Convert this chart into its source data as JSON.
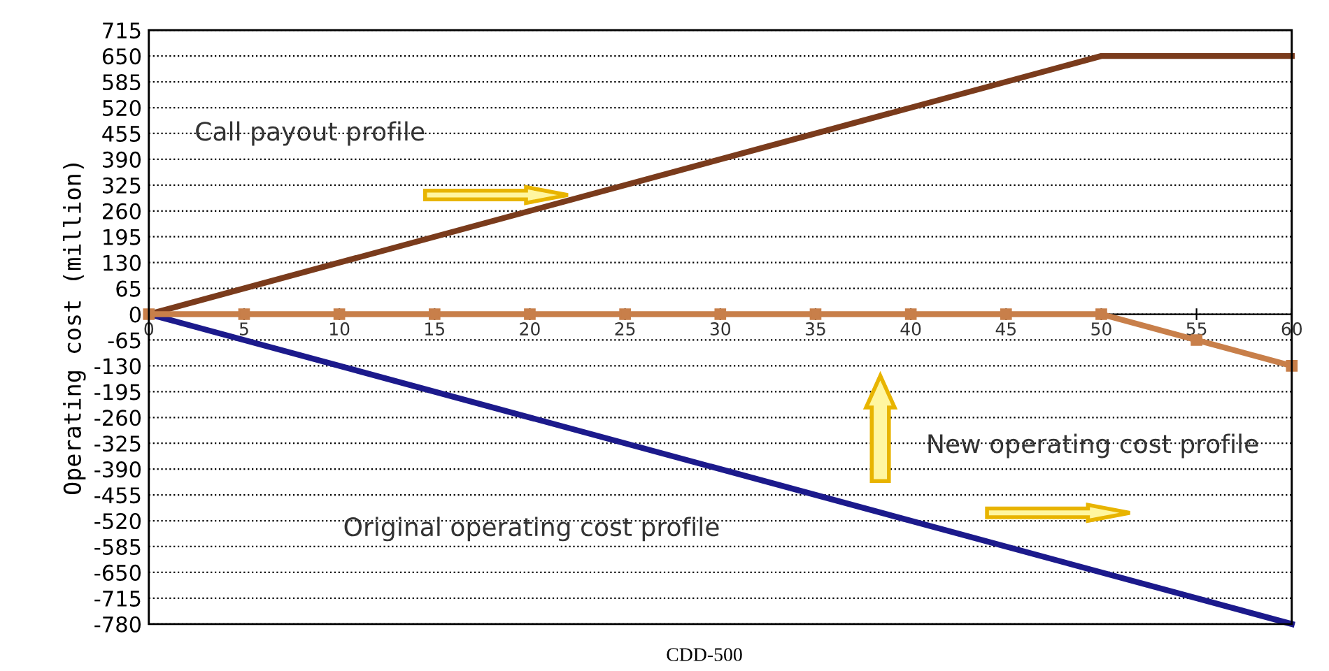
{
  "chart_data": {
    "type": "line",
    "xlabel": "CDD-500",
    "ylabel": "Operating cost (million)",
    "xlim": [
      0,
      60
    ],
    "xticks": [
      0,
      5,
      10,
      15,
      20,
      25,
      30,
      35,
      40,
      45,
      50,
      55,
      60
    ],
    "ylim": [
      -780,
      715
    ],
    "yticks": [
      -780,
      -715,
      -650,
      -585,
      -520,
      -455,
      -390,
      -325,
      -260,
      -195,
      -130,
      -65,
      0,
      65,
      130,
      195,
      260,
      325,
      390,
      455,
      520,
      585,
      650,
      715
    ],
    "grid": "y",
    "legend": false,
    "line_style": "solid",
    "series": [
      {
        "color": "#7a3b1c",
        "x": [
          0,
          50,
          60
        ],
        "values": [
          0,
          650,
          650
        ],
        "marker": "none"
      },
      {
        "color": "#1c1a8c",
        "x": [
          0,
          60
        ],
        "values": [
          0,
          -780
        ],
        "marker": "none"
      },
      {
        "color": "#c87f4a",
        "x": [
          0,
          5,
          10,
          15,
          20,
          25,
          30,
          35,
          40,
          45,
          50,
          55,
          60
        ],
        "values": [
          0,
          0,
          0,
          0,
          0,
          0,
          0,
          0,
          0,
          0,
          0,
          -65,
          -130
        ],
        "marker": "square"
      }
    ],
    "annotations": [
      "Call payout profile",
      "New operating cost profile",
      "Original operating cost profile"
    ]
  }
}
